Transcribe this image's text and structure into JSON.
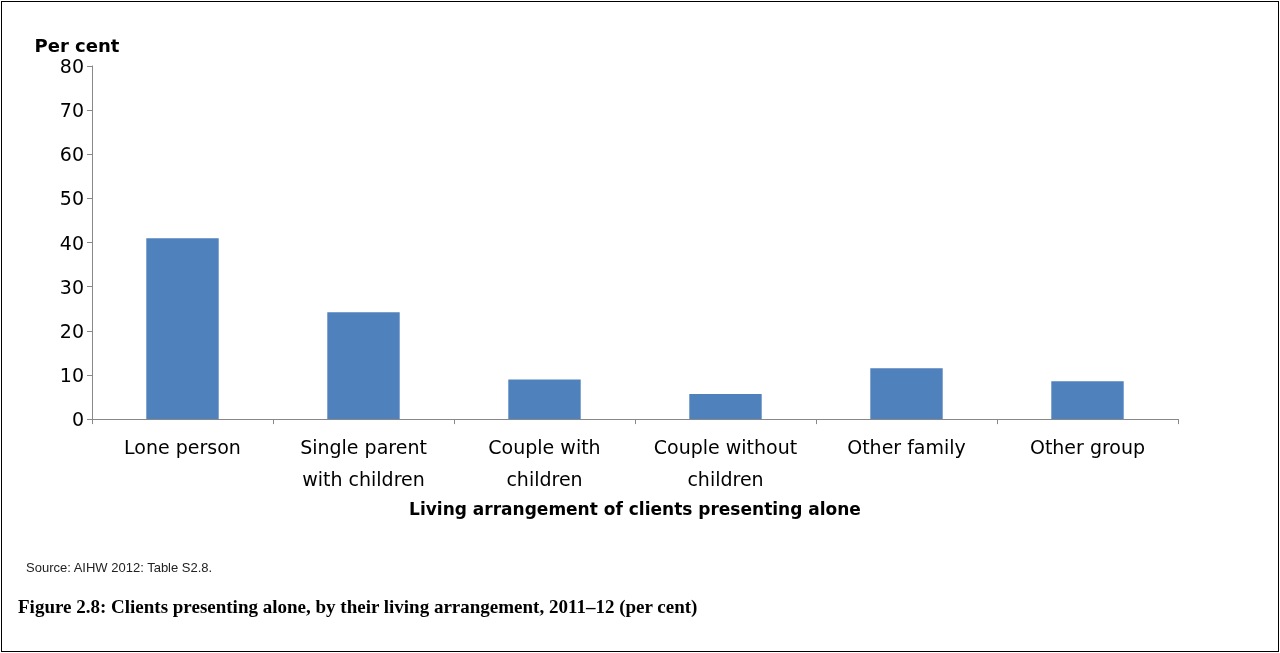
{
  "chart_data": {
    "type": "bar",
    "title": "Figure 2.8: Clients presenting alone, by their living arrangement, 2011–12 (per cent)",
    "xlabel": "Living arrangement of clients presenting alone",
    "ylabel": "Per cent",
    "categories": [
      "Lone person",
      "Single parent\nwith children",
      "Couple with\nchildren",
      "Couple without\nchildren",
      "Other family",
      "Other group"
    ],
    "values": [
      41.0,
      24.2,
      9.0,
      5.7,
      11.5,
      8.6
    ],
    "color": "#4f81bd",
    "ylim": [
      0,
      80
    ],
    "yticks": [
      0,
      10,
      20,
      30,
      40,
      50,
      60,
      70,
      80
    ],
    "grid": false,
    "annotations": [
      "Source: AIHW 2012: Table S2.8."
    ]
  }
}
